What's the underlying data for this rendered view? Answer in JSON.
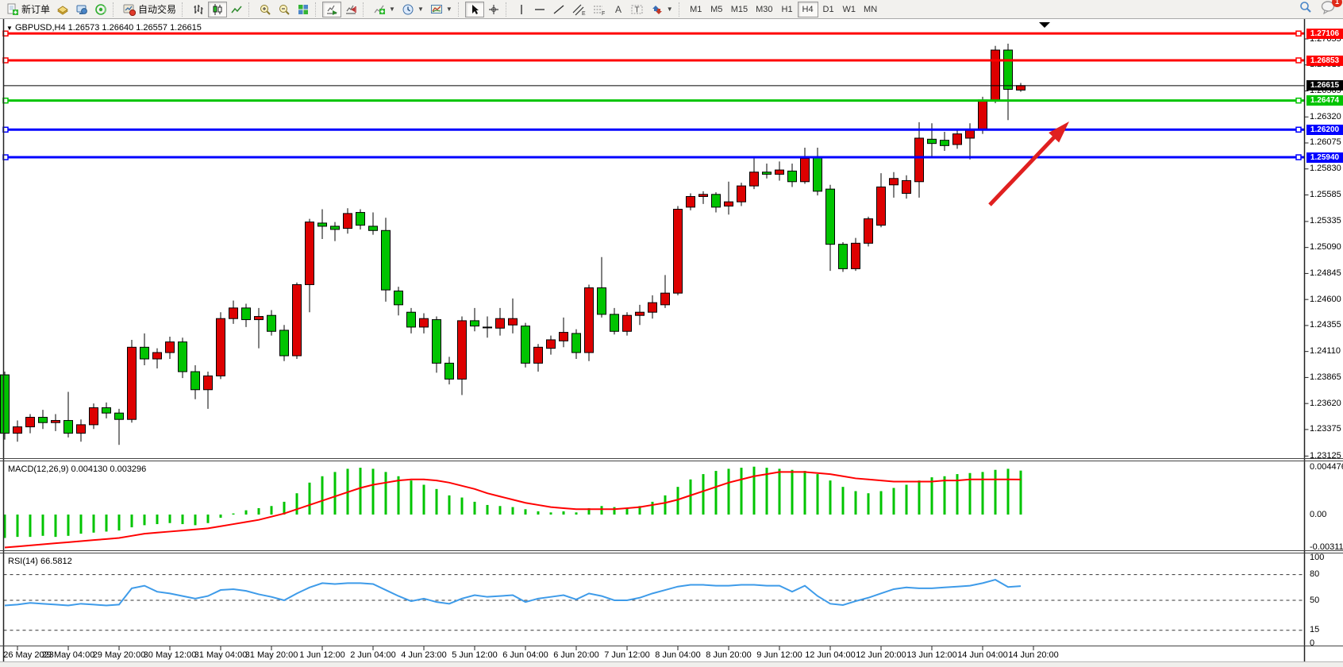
{
  "toolbar": {
    "new_order_label": "新订单",
    "autotrading_label": "自动交易",
    "timeframes": [
      "M1",
      "M5",
      "M15",
      "M30",
      "H1",
      "H4",
      "D1",
      "W1",
      "MN"
    ],
    "active_timeframe": "H4",
    "message_badge": "1"
  },
  "chart_data": {
    "type": "candlestick",
    "title": "GBPUSD,H4  1.26573 1.26640 1.26557 1.26615",
    "symbol": "GBPUSD",
    "timeframe": "H4",
    "current_ohlc": {
      "open": "1.26573",
      "high": "1.26640",
      "low": "1.26557",
      "close": "1.26615"
    },
    "bid_price": "1.26615",
    "up_color": "#dd0000",
    "down_color": "#00c400",
    "price_ticks": [
      "1.27055",
      "1.26810",
      "1.26565",
      "1.26320",
      "1.26075",
      "1.25830",
      "1.25585",
      "1.25335",
      "1.25090",
      "1.24845",
      "1.24600",
      "1.24355",
      "1.24110",
      "1.23865",
      "1.23620",
      "1.23375",
      "1.23125"
    ],
    "horizontal_lines": [
      {
        "price": "1.27106",
        "color": "#ff0000",
        "kind": "resistance"
      },
      {
        "price": "1.26853",
        "color": "#ff0000",
        "kind": "resistance"
      },
      {
        "price": "1.26474",
        "color": "#00c400",
        "kind": "support"
      },
      {
        "price": "1.26200",
        "color": "#0000ff",
        "kind": "support"
      },
      {
        "price": "1.25940",
        "color": "#0000ff",
        "kind": "support"
      }
    ],
    "time_labels": [
      "26 May 2023",
      "29 May 04:00",
      "29 May 20:00",
      "30 May 12:00",
      "31 May 04:00",
      "31 May 20:00",
      "1 Jun 12:00",
      "2 Jun 04:00",
      "4 Jun 23:00",
      "5 Jun 12:00",
      "6 Jun 04:00",
      "6 Jun 20:00",
      "7 Jun 12:00",
      "8 Jun 04:00",
      "8 Jun 20:00",
      "9 Jun 12:00",
      "12 Jun 04:00",
      "12 Jun 20:00",
      "13 Jun 12:00",
      "14 Jun 04:00",
      "14 Jun 20:00"
    ],
    "candles": [
      [
        1.2389,
        1.2392,
        1.2328,
        1.2334
      ],
      [
        1.2334,
        1.2346,
        1.2326,
        1.234
      ],
      [
        1.234,
        1.2352,
        1.2334,
        1.2349
      ],
      [
        1.2349,
        1.2356,
        1.2338,
        1.2344
      ],
      [
        1.2344,
        1.2352,
        1.2336,
        1.2346
      ],
      [
        1.2346,
        1.2373,
        1.233,
        1.2334
      ],
      [
        1.2334,
        1.2347,
        1.2326,
        1.2342
      ],
      [
        1.2342,
        1.2362,
        1.2338,
        1.2358
      ],
      [
        1.2358,
        1.2363,
        1.2348,
        1.2353
      ],
      [
        1.2353,
        1.2357,
        1.2323,
        1.2347
      ],
      [
        1.2347,
        1.2422,
        1.2344,
        1.2415
      ],
      [
        1.2415,
        1.2428,
        1.2398,
        1.2404
      ],
      [
        1.2404,
        1.2414,
        1.2395,
        1.241
      ],
      [
        1.241,
        1.2425,
        1.2404,
        1.242
      ],
      [
        1.242,
        1.2424,
        1.2386,
        1.2392
      ],
      [
        1.2392,
        1.2398,
        1.2366,
        1.2375
      ],
      [
        1.2375,
        1.2392,
        1.2357,
        1.2388
      ],
      [
        1.2388,
        1.2448,
        1.2385,
        1.2442
      ],
      [
        1.2442,
        1.2459,
        1.2437,
        1.2452
      ],
      [
        1.2452,
        1.2456,
        1.2434,
        1.2441
      ],
      [
        1.2441,
        1.2452,
        1.2414,
        1.2444
      ],
      [
        1.2445,
        1.245,
        1.2426,
        1.243
      ],
      [
        1.2431,
        1.2436,
        1.2402,
        1.2407
      ],
      [
        1.2407,
        1.2476,
        1.2404,
        1.2474
      ],
      [
        1.2474,
        1.2536,
        1.2448,
        1.2533
      ],
      [
        1.2532,
        1.2545,
        1.2517,
        1.2529
      ],
      [
        1.2529,
        1.2533,
        1.2515,
        1.2526
      ],
      [
        1.2527,
        1.2546,
        1.2522,
        1.2541
      ],
      [
        1.2542,
        1.2545,
        1.2526,
        1.253
      ],
      [
        1.2529,
        1.2542,
        1.2521,
        1.2525
      ],
      [
        1.2525,
        1.2537,
        1.2458,
        1.2469
      ],
      [
        1.2468,
        1.2472,
        1.2445,
        1.2455
      ],
      [
        1.2448,
        1.2452,
        1.2428,
        1.2434
      ],
      [
        1.2434,
        1.2447,
        1.2428,
        1.2442
      ],
      [
        1.2441,
        1.2444,
        1.2391,
        1.24
      ],
      [
        1.24,
        1.2406,
        1.238,
        1.2385
      ],
      [
        1.2385,
        1.2444,
        1.237,
        1.244
      ],
      [
        1.244,
        1.2452,
        1.243,
        1.2435
      ],
      [
        1.2434,
        1.2444,
        1.2424,
        1.2434
      ],
      [
        1.2433,
        1.2452,
        1.2426,
        1.2442
      ],
      [
        1.2436,
        1.2461,
        1.2428,
        1.2442
      ],
      [
        1.2435,
        1.2438,
        1.2396,
        1.24
      ],
      [
        1.24,
        1.2418,
        1.2392,
        1.2415
      ],
      [
        1.2414,
        1.2426,
        1.2408,
        1.2422
      ],
      [
        1.2421,
        1.2443,
        1.2415,
        1.2429
      ],
      [
        1.2428,
        1.2432,
        1.2404,
        1.241
      ],
      [
        1.241,
        1.2474,
        1.2402,
        1.2471
      ],
      [
        1.2471,
        1.25,
        1.2443,
        1.2446
      ],
      [
        1.2446,
        1.2452,
        1.2427,
        1.243
      ],
      [
        1.243,
        1.2448,
        1.2426,
        1.2445
      ],
      [
        1.2445,
        1.2455,
        1.2436,
        1.2448
      ],
      [
        1.2448,
        1.2464,
        1.2442,
        1.2457
      ],
      [
        1.2455,
        1.2483,
        1.2452,
        1.2466
      ],
      [
        1.2466,
        1.2548,
        1.2464,
        1.2545
      ],
      [
        1.2547,
        1.256,
        1.2544,
        1.2557
      ],
      [
        1.2557,
        1.2562,
        1.255,
        1.2559
      ],
      [
        1.2559,
        1.2561,
        1.2542,
        1.2547
      ],
      [
        1.2548,
        1.2571,
        1.254,
        1.2552
      ],
      [
        1.2552,
        1.257,
        1.2548,
        1.2567
      ],
      [
        1.2567,
        1.2593,
        1.2564,
        1.258
      ],
      [
        1.258,
        1.2588,
        1.2574,
        1.2578
      ],
      [
        1.2578,
        1.259,
        1.2572,
        1.2582
      ],
      [
        1.2581,
        1.2588,
        1.2566,
        1.2571
      ],
      [
        1.2571,
        1.2603,
        1.2569,
        1.2593
      ],
      [
        1.2594,
        1.2603,
        1.2558,
        1.2562
      ],
      [
        1.2564,
        1.2568,
        1.2487,
        1.2512
      ],
      [
        1.2512,
        1.2514,
        1.2486,
        1.2489
      ],
      [
        1.2489,
        1.2518,
        1.2487,
        1.2513
      ],
      [
        1.2513,
        1.2538,
        1.251,
        1.2536
      ],
      [
        1.253,
        1.2579,
        1.2528,
        1.2566
      ],
      [
        1.2568,
        1.258,
        1.2556,
        1.2574
      ],
      [
        1.256,
        1.2577,
        1.2555,
        1.2572
      ],
      [
        1.2571,
        1.2627,
        1.2556,
        1.2612
      ],
      [
        1.2611,
        1.2626,
        1.2594,
        1.2607
      ],
      [
        1.261,
        1.2618,
        1.26,
        1.2605
      ],
      [
        1.2606,
        1.2621,
        1.2602,
        1.2616
      ],
      [
        1.2612,
        1.2626,
        1.2592,
        1.262
      ],
      [
        1.262,
        1.2651,
        1.2616,
        1.2648
      ],
      [
        1.2648,
        1.2699,
        1.2645,
        1.2695
      ],
      [
        1.2695,
        1.2701,
        1.2629,
        1.2658
      ],
      [
        1.26573,
        1.2664,
        1.26557,
        1.26615
      ]
    ],
    "arrow_annotation": {
      "color": "#e02020",
      "from_xy": [
        1247,
        258
      ],
      "to_xy": [
        1347,
        153
      ]
    }
  },
  "macd": {
    "label": "MACD(12,26,9) 0.004130 0.003296",
    "axis_labels": [
      "0.004476",
      "0.00",
      "-0.003119"
    ],
    "axis_values": [
      0.004476,
      0,
      -0.003119
    ],
    "histogram_color": "#00c400",
    "signal_color": "#ff0000",
    "histogram": [
      -0.0022,
      -0.0021,
      -0.0021,
      -0.002,
      -0.0021,
      -0.002,
      -0.0018,
      -0.0017,
      -0.0016,
      -0.0015,
      -0.0012,
      -0.001,
      -0.0009,
      -0.0008,
      -0.0009,
      -0.001,
      -0.0008,
      -0.0003,
      0.0001,
      0.0004,
      0.0006,
      0.0008,
      0.0012,
      0.002,
      0.003,
      0.0036,
      0.004,
      0.0043,
      0.0044,
      0.0043,
      0.004,
      0.0036,
      0.0032,
      0.0028,
      0.0024,
      0.0018,
      0.0016,
      0.0012,
      0.0009,
      0.0008,
      0.0007,
      0.0005,
      0.0003,
      0.0002,
      0.0003,
      0.0002,
      0.0006,
      0.0008,
      0.0007,
      0.0006,
      0.0008,
      0.0012,
      0.0018,
      0.0026,
      0.0033,
      0.0038,
      0.0041,
      0.0043,
      0.0044,
      0.0045,
      0.0044,
      0.0043,
      0.0042,
      0.0041,
      0.0038,
      0.0032,
      0.0026,
      0.0022,
      0.002,
      0.0022,
      0.0025,
      0.0028,
      0.0032,
      0.0035,
      0.0036,
      0.0038,
      0.0039,
      0.004,
      0.0042,
      0.0043,
      0.00413
    ],
    "signal": [
      -0.0031,
      -0.003,
      -0.0029,
      -0.0028,
      -0.0027,
      -0.0026,
      -0.0025,
      -0.0024,
      -0.0023,
      -0.0022,
      -0.002,
      -0.0018,
      -0.0017,
      -0.0016,
      -0.0015,
      -0.0014,
      -0.0013,
      -0.0011,
      -0.0009,
      -0.0007,
      -0.0005,
      -0.0002,
      0.0001,
      0.0005,
      0.0009,
      0.0013,
      0.0017,
      0.0021,
      0.0025,
      0.0028,
      0.003,
      0.0032,
      0.0033,
      0.0033,
      0.0032,
      0.003,
      0.0027,
      0.0024,
      0.002,
      0.0017,
      0.0014,
      0.0011,
      0.0009,
      0.0007,
      0.0006,
      0.0005,
      0.0005,
      0.0005,
      0.0005,
      0.0006,
      0.0007,
      0.0009,
      0.0011,
      0.0014,
      0.0018,
      0.0022,
      0.0026,
      0.003,
      0.0033,
      0.0036,
      0.0038,
      0.004,
      0.004,
      0.004,
      0.0039,
      0.0038,
      0.0036,
      0.0034,
      0.0033,
      0.0032,
      0.0031,
      0.0031,
      0.0031,
      0.0031,
      0.0032,
      0.0032,
      0.0033,
      0.0033,
      0.0033,
      0.0033,
      0.003296
    ]
  },
  "rsi": {
    "label": "RSI(14) 66.5812",
    "axis_labels": [
      "100",
      "80",
      "50",
      "15",
      "0"
    ],
    "axis_values": [
      100,
      80,
      50,
      15,
      0
    ],
    "dashed_levels": [
      80,
      50,
      15
    ],
    "line_color": "#3e9be9",
    "values": [
      44,
      45,
      47,
      46,
      45,
      44,
      46,
      45,
      44,
      45,
      64,
      67,
      60,
      58,
      55,
      52,
      55,
      62,
      63,
      61,
      57,
      54,
      50,
      58,
      65,
      70,
      69,
      70,
      70,
      69,
      62,
      55,
      49,
      52,
      48,
      46,
      52,
      56,
      54,
      55,
      56,
      48,
      52,
      54,
      56,
      51,
      58,
      55,
      50,
      50,
      53,
      58,
      62,
      66,
      68,
      68,
      67,
      67,
      68,
      68,
      67,
      67,
      60,
      67,
      55,
      46,
      44.5,
      49,
      53,
      58,
      63,
      65,
      64,
      64,
      65,
      66,
      67,
      70,
      74,
      65.5,
      66.5812
    ]
  }
}
